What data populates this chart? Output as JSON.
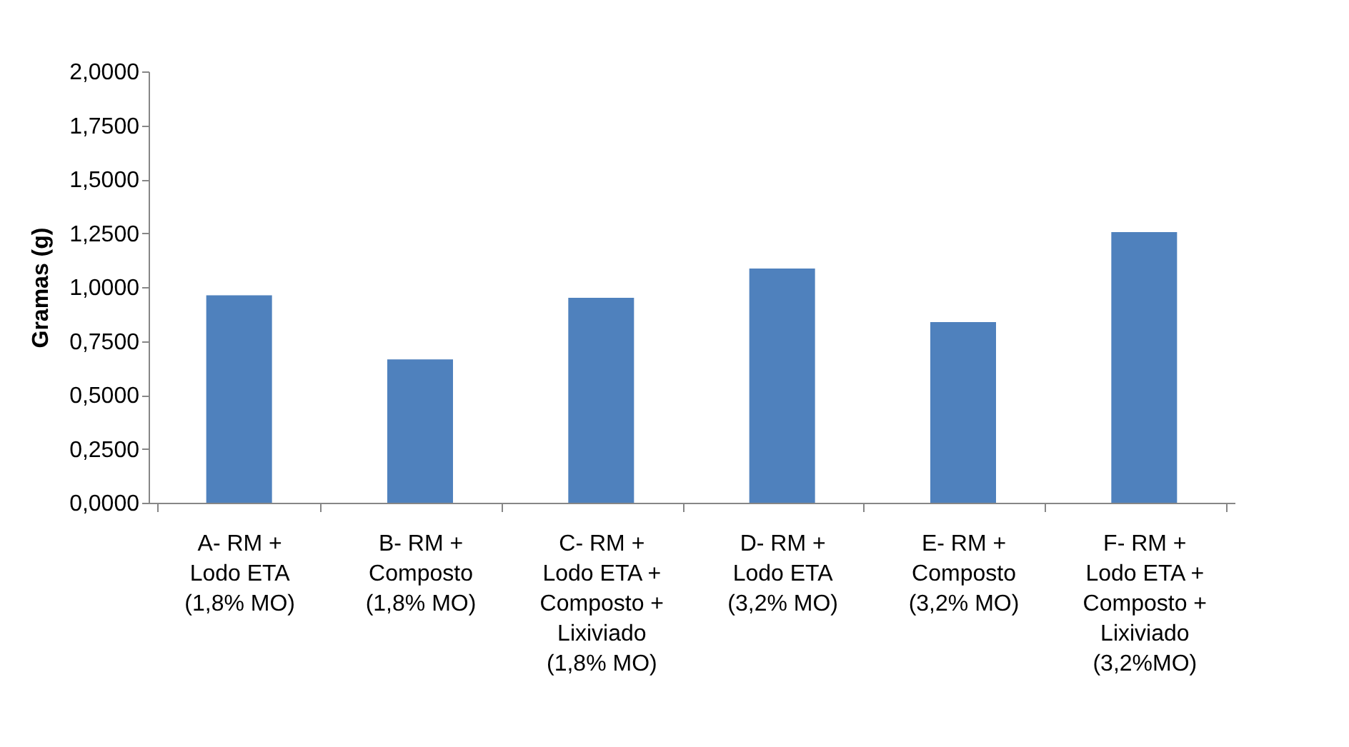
{
  "chart_data": {
    "type": "bar",
    "ylabel": "Gramas (g)",
    "categories": [
      "A- RM  +\nLodo ETA\n(1,8% MO)",
      "B- RM  +\nComposto\n(1,8% MO)",
      "C- RM  +\nLodo ETA +\nComposto +\nLixiviado\n(1,8% MO)",
      "D- RM  +\nLodo ETA\n(3,2% MO)",
      "E- RM  +\nComposto\n(3,2% MO)",
      "F- RM  +\nLodo ETA +\nComposto +\nLixiviado\n(3,2%MO)"
    ],
    "values": [
      0.962,
      0.665,
      0.95,
      1.086,
      0.838,
      1.255
    ],
    "color": "#4f81bd",
    "ylim": [
      0,
      2
    ],
    "yticks": [
      {
        "value": 0,
        "label": "0,0000"
      },
      {
        "value": 0.25,
        "label": "0,2500"
      },
      {
        "value": 0.5,
        "label": "0,5000"
      },
      {
        "value": 0.75,
        "label": "0,7500"
      },
      {
        "value": 1,
        "label": "1,0000"
      },
      {
        "value": 1.25,
        "label": "1,2500"
      },
      {
        "value": 1.5,
        "label": "1,5000"
      },
      {
        "value": 1.75,
        "label": "1,7500"
      },
      {
        "value": 2,
        "label": "2,0000"
      }
    ],
    "grid": false
  }
}
